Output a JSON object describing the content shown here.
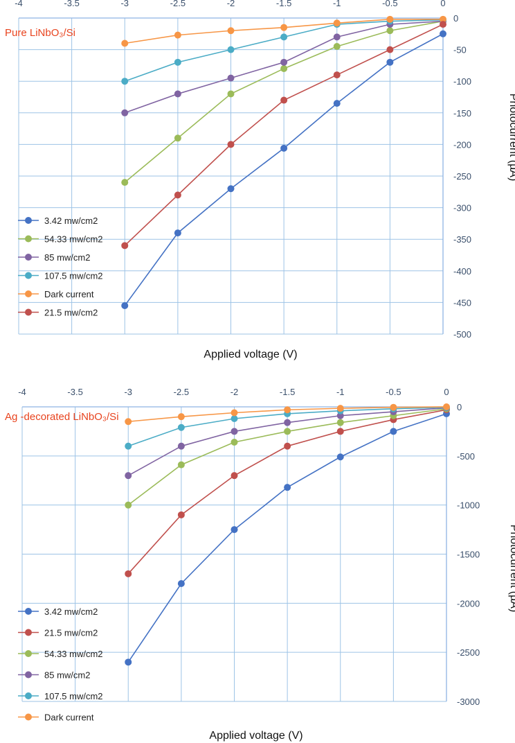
{
  "colors": {
    "blue": "#4472C4",
    "red": "#C0504D",
    "green": "#9BBB59",
    "purple": "#8064A2",
    "cyan": "#4BACC6",
    "orange": "#F79646",
    "axis": "#8EB4E3",
    "grid": "#9DC3E6",
    "tick_text": "#3A4F6B",
    "title_red": "#E8431E"
  },
  "chart_data": [
    {
      "type": "line",
      "title": "Pure LiNbO₃/Si",
      "xlabel": "Applied voltage (V)",
      "ylabel": "Photocurrent (µA)",
      "xlim": [
        -4,
        0
      ],
      "ylim": [
        -500,
        0
      ],
      "x_ticks": [
        "-4",
        "-3.5",
        "-3",
        "-2.5",
        "-2",
        "-1.5",
        "-1",
        "-0.5",
        "0"
      ],
      "y_ticks": [
        "0",
        "-50",
        "-100",
        "-150",
        "-200",
        "-250",
        "-300",
        "-350",
        "-400",
        "-450",
        "-500"
      ],
      "x_axis_position": "top",
      "y_axis_position": "right",
      "grid": true,
      "legend_placement": "lower-left",
      "x": [
        -3,
        -2.5,
        -2,
        -1.5,
        -1,
        -0.5,
        0
      ],
      "series": [
        {
          "name": "3.42 mw/cm2",
          "color": "blue",
          "values": [
            -455,
            -340,
            -270,
            -206,
            -135,
            -70,
            -25
          ]
        },
        {
          "name": "54.33 mw/cm2",
          "color": "green",
          "values": [
            -260,
            -190,
            -120,
            -80,
            -45,
            -20,
            -5
          ]
        },
        {
          "name": "85 mw/cm2",
          "color": "purple",
          "values": [
            -150,
            -120,
            -95,
            -70,
            -30,
            -10,
            -5
          ]
        },
        {
          "name": "107.5 mw/cm2",
          "color": "cyan",
          "values": [
            -100,
            -70,
            -50,
            -30,
            -10,
            -5,
            -3
          ]
        },
        {
          "name": "Dark current",
          "color": "orange",
          "values": [
            -40,
            -27,
            -20,
            -15,
            -8,
            -2,
            -2
          ]
        },
        {
          "name": "21.5 mw/cm2",
          "color": "red",
          "values": [
            -360,
            -280,
            -200,
            -130,
            -90,
            -50,
            -10
          ]
        }
      ]
    },
    {
      "type": "line",
      "title": "Ag -decorated LiNbO₃/Si",
      "xlabel": "Applied voltage (V)",
      "ylabel": "Photocurrent (µA)",
      "xlim": [
        -4,
        0
      ],
      "ylim": [
        -3000,
        0
      ],
      "x_ticks": [
        "-4",
        "-3.5",
        "-3",
        "-2.5",
        "-2",
        "-1.5",
        "-1",
        "-0.5",
        "0"
      ],
      "y_ticks": [
        "0",
        "-500",
        "-1000",
        "-1500",
        "-2000",
        "-2500",
        "-3000"
      ],
      "x_axis_position": "top",
      "y_axis_position": "right",
      "grid": true,
      "legend_placement": "lower-left",
      "x": [
        -3,
        -2.5,
        -2,
        -1.5,
        -1,
        -0.5,
        0
      ],
      "series": [
        {
          "name": "3.42 mw/cm2",
          "color": "blue",
          "values": [
            -2600,
            -1800,
            -1250,
            -820,
            -510,
            -250,
            -70
          ]
        },
        {
          "name": "21.5 mw/cm2",
          "color": "red",
          "values": [
            -1700,
            -1100,
            -700,
            -400,
            -250,
            -130,
            -30
          ]
        },
        {
          "name": "54.33 mw/cm2",
          "color": "green",
          "values": [
            -1000,
            -590,
            -360,
            -250,
            -160,
            -90,
            -20
          ]
        },
        {
          "name": "85 mw/cm2",
          "color": "purple",
          "values": [
            -700,
            -400,
            -250,
            -160,
            -90,
            -50,
            -10
          ]
        },
        {
          "name": "107.5 mw/cm2",
          "color": "cyan",
          "values": [
            -400,
            -210,
            -120,
            -70,
            -40,
            -20,
            -5
          ]
        },
        {
          "name": "Dark current",
          "color": "orange",
          "values": [
            -150,
            -100,
            -60,
            -30,
            -15,
            -5,
            0
          ]
        }
      ]
    }
  ]
}
